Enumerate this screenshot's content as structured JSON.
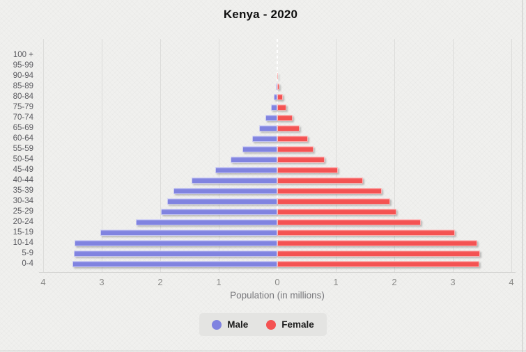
{
  "colors": {
    "male": "#8083e0",
    "female": "#f45252",
    "grid": "#dcdcda",
    "axis": "#d0d0ce",
    "center_line": "#ffffff",
    "tick_text": "#8a8a88",
    "age_text": "#5a5a5f",
    "xlabel_text": "#77777b",
    "legend_text": "#1c1c1c",
    "legend_bg": "#e4e4e2",
    "title_text": "#101010",
    "background": "#f0f0ee"
  },
  "chart_data": {
    "type": "bar",
    "variant": "population_pyramid",
    "title": "Kenya - 2020",
    "xlabel": "Population (in millions)",
    "unit": "millions of people",
    "grid": true,
    "legend_position": "bottom-center",
    "categories_order": "top-to-bottom (oldest to youngest)",
    "categories": [
      "100 +",
      "95-99",
      "90-94",
      "85-89",
      "80-84",
      "75-79",
      "70-74",
      "65-69",
      "60-64",
      "55-59",
      "50-54",
      "45-49",
      "40-44",
      "35-39",
      "30-34",
      "25-29",
      "20-24",
      "15-19",
      "10-14",
      "5-9",
      "0-4"
    ],
    "xticks": [
      "4",
      "3",
      "2",
      "1",
      "0",
      "1",
      "2",
      "3",
      "4"
    ],
    "xlim_each_side": [
      0,
      4
    ],
    "series": [
      {
        "name": "Male",
        "side": "left",
        "color": "#8083e0",
        "values": [
          0,
          0,
          0,
          0.02,
          0.06,
          0.11,
          0.2,
          0.31,
          0.43,
          0.6,
          0.8,
          1.06,
          1.46,
          1.77,
          1.88,
          1.99,
          2.42,
          3.02,
          3.46,
          3.48,
          3.5
        ]
      },
      {
        "name": "Female",
        "side": "right",
        "color": "#f45252",
        "values": [
          0,
          0,
          0.01,
          0.04,
          0.1,
          0.15,
          0.26,
          0.38,
          0.52,
          0.62,
          0.81,
          1.04,
          1.46,
          1.79,
          1.93,
          2.04,
          2.45,
          3.04,
          3.42,
          3.46,
          3.45
        ]
      }
    ]
  }
}
